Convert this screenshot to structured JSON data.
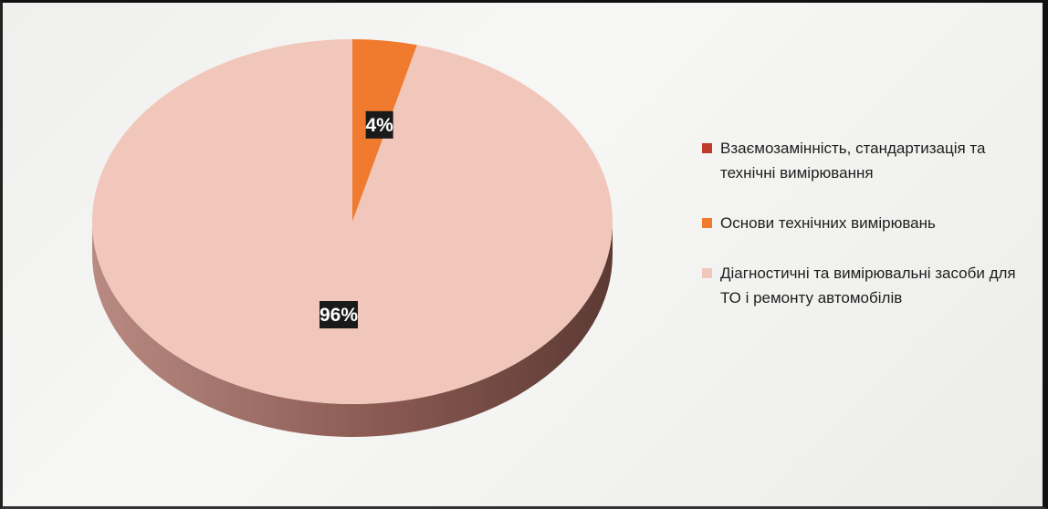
{
  "chart_data": {
    "type": "pie",
    "style": "3d",
    "start_angle_deg": 0,
    "series": [
      {
        "name": "Взаємозамінність, стандартизація та технічні вимірювання",
        "value": 0,
        "color": "#c0392b",
        "label": ""
      },
      {
        "name": "Основи технічних вимірювань",
        "value": 4,
        "color": "#f07a2e",
        "label": "4%"
      },
      {
        "name": "Діагностичні та вимірювальні засоби для ТО і ремонту автомобілів",
        "value": 96,
        "color": "#f2c7bb",
        "label": "96%"
      }
    ],
    "legend_position": "right",
    "side_color": "#8a5a52"
  }
}
